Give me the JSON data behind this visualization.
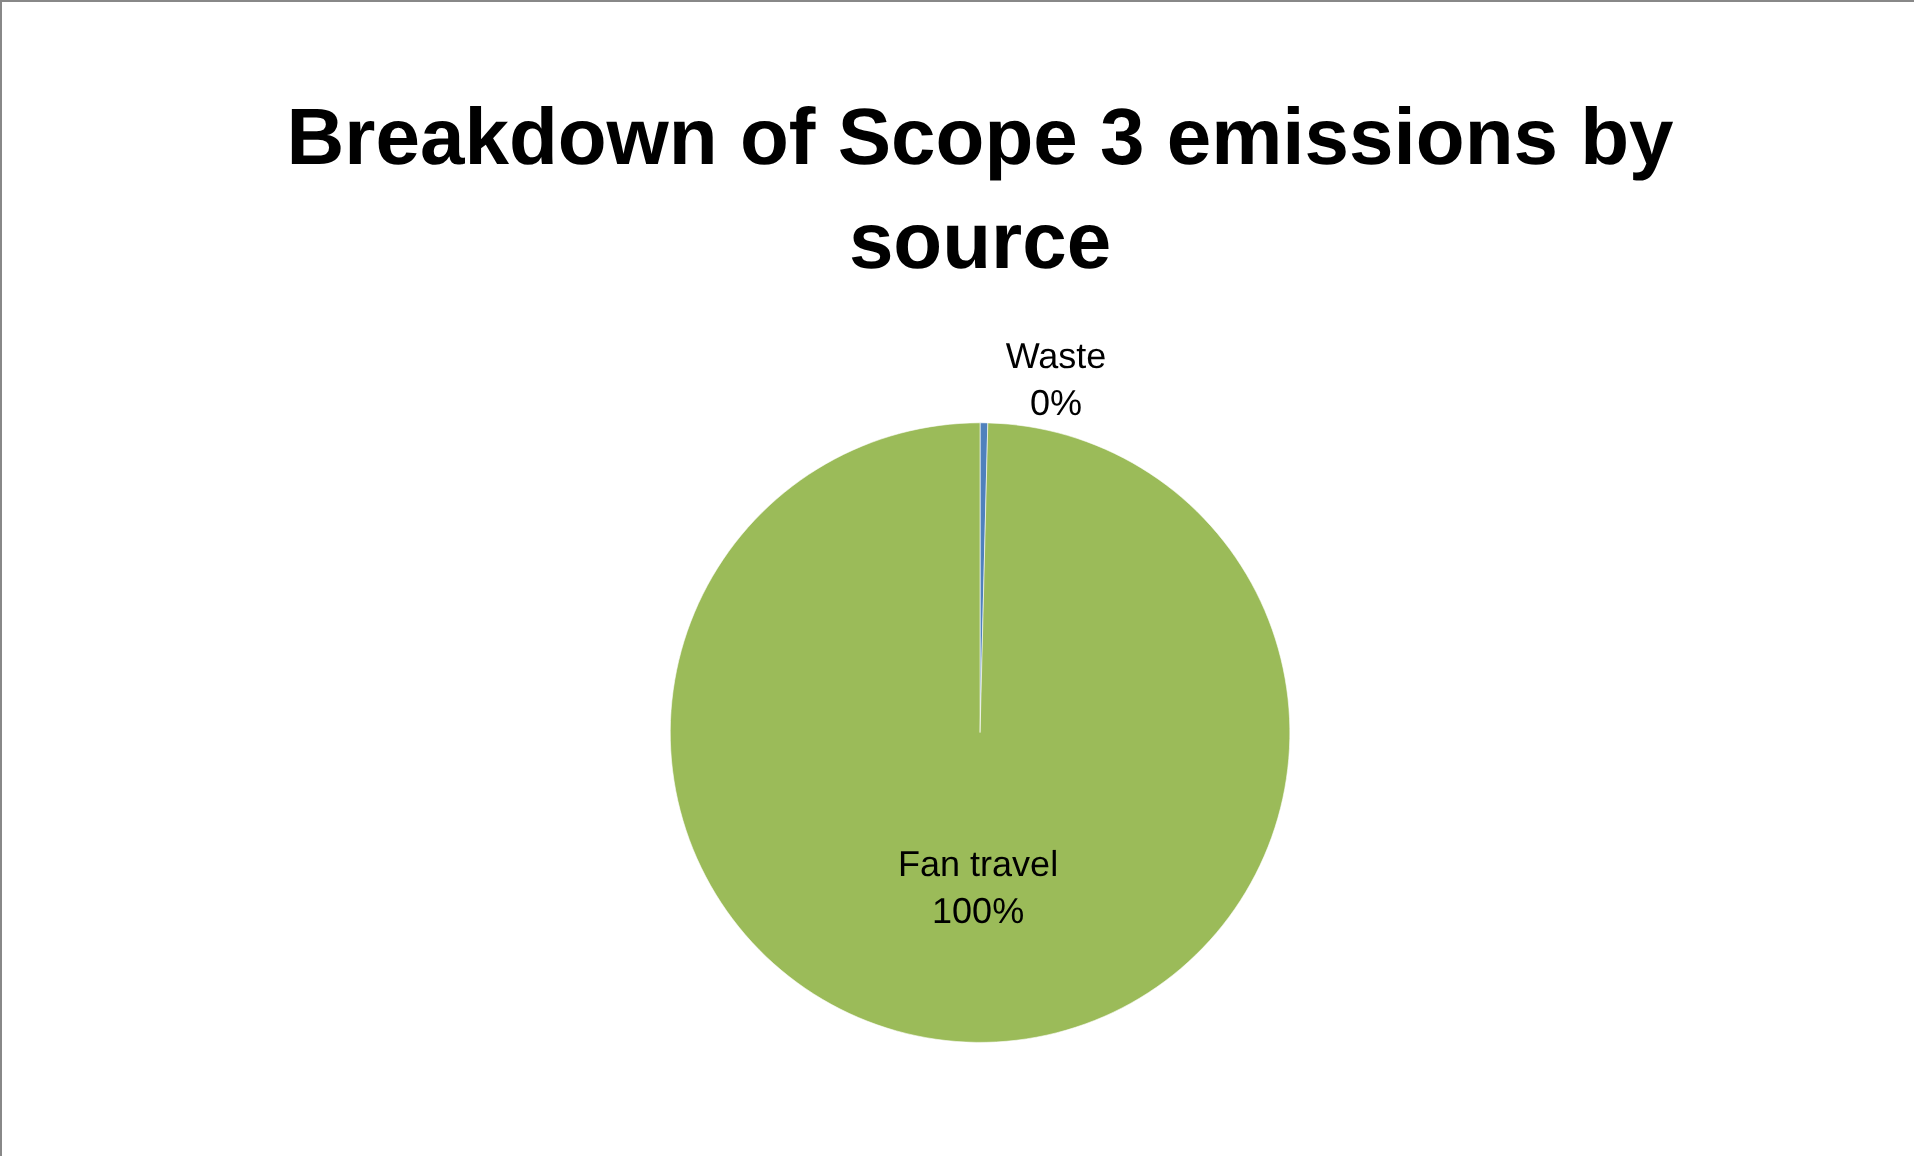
{
  "chart_data": {
    "type": "pie",
    "title": "Breakdown of Scope 3 emissions by source",
    "categories": [
      "Waste",
      "Fan travel"
    ],
    "values": [
      0.4,
      99.6
    ],
    "value_labels": [
      "0%",
      "100%"
    ],
    "colors": [
      "#4f81bd",
      "#9bbb59"
    ]
  }
}
